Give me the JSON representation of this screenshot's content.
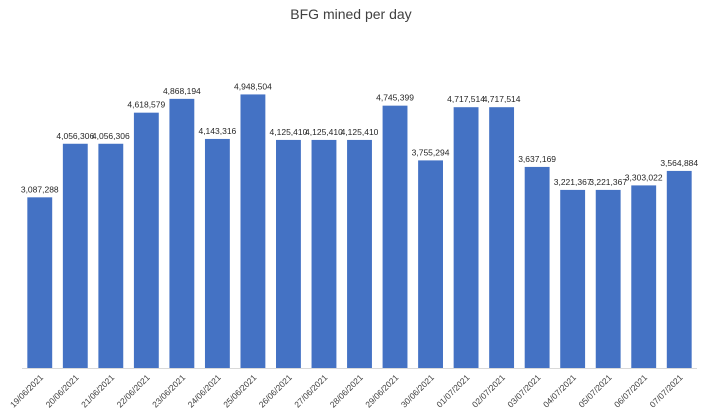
{
  "chart_data": {
    "type": "bar",
    "title": "BFG mined per day",
    "xlabel": "",
    "ylabel": "",
    "grid": false,
    "legend": "none",
    "bar_color": "#4472C4",
    "ylim": [
      0,
      5300000
    ],
    "categories": [
      "19/06/2021",
      "20/06/2021",
      "21/06/2021",
      "22/06/2021",
      "23/06/2021",
      "24/06/2021",
      "25/06/2021",
      "26/06/2021",
      "27/06/2021",
      "28/06/2021",
      "29/06/2021",
      "30/06/2021",
      "01/07/2021",
      "02/07/2021",
      "03/07/2021",
      "04/07/2021",
      "05/07/2021",
      "06/07/2021",
      "07/07/2021"
    ],
    "values": [
      3087288,
      4056306,
      4056306,
      4618579,
      4868194,
      4143316,
      4948504,
      4125410,
      4125410,
      4125410,
      4745399,
      3755294,
      4717514,
      4717514,
      3637169,
      3221367,
      3221367,
      3303022,
      3564884
    ],
    "data_labels": [
      "3,087,288",
      "4,056,306",
      "4,056,306",
      "4,618,579",
      "4,868,194",
      "4,143,316",
      "4,948,504",
      "4,125,410",
      "4,125,410",
      "4,125,410",
      "4,745,399",
      "3,755,294",
      "4,717,514",
      "4,717,514",
      "3,637,169",
      "3,221,367",
      "3,221,367",
      "3,303,022",
      "3,564,884"
    ]
  }
}
